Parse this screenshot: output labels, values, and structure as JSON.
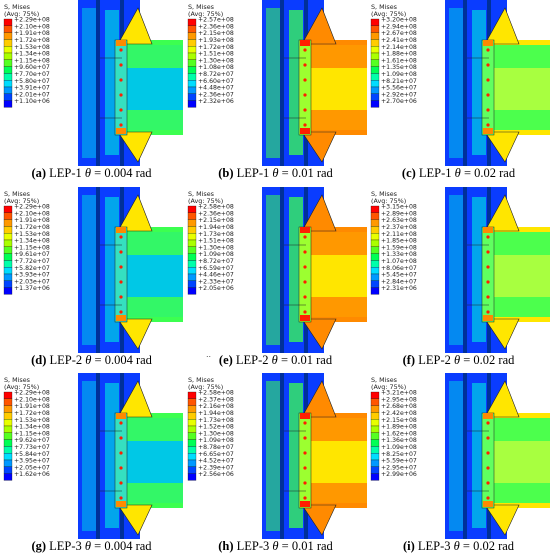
{
  "panels": [
    {
      "letter": "(a)",
      "label": "LEP-1",
      "theta": "θ",
      "angle": "= 0.004 rad",
      "title": "S, Mises",
      "subtitle": "(Avg: 75%)",
      "scheme": "a",
      "legend": [
        "+2.29e+08",
        "+2.10e+08",
        "+1.91e+08",
        "+1.72e+08",
        "+1.53e+08",
        "+1.34e+08",
        "+1.15e+08",
        "+9.60e+07",
        "+7.70e+07",
        "+5.80e+07",
        "+3.91e+07",
        "+2.01e+07",
        "+1.10e+06"
      ]
    },
    {
      "letter": "(b)",
      "label": "LEP-1",
      "theta": "θ",
      "angle": "= 0.01 rad",
      "title": "S, Mises",
      "subtitle": "(Avg: 75%)",
      "scheme": "b",
      "legend": [
        "+2.57e+08",
        "+2.36e+08",
        "+2.15e+08",
        "+1.93e+08",
        "+1.72e+08",
        "+1.51e+08",
        "+1.30e+08",
        "+1.08e+08",
        "+8.72e+07",
        "+6.60e+07",
        "+4.48e+07",
        "+2.36e+07",
        "+2.32e+06"
      ]
    },
    {
      "letter": "(c)",
      "label": "LEP-1",
      "theta": "θ",
      "angle": "= 0.02 rad",
      "title": "S, Mises",
      "subtitle": "(Avg: 75%)",
      "scheme": "c",
      "legend": [
        "+3.20e+08",
        "+2.94e+08",
        "+2.67e+08",
        "+2.41e+08",
        "+2.14e+08",
        "+1.88e+08",
        "+1.61e+08",
        "+1.35e+08",
        "+1.09e+08",
        "+8.21e+07",
        "+5.56e+07",
        "+2.92e+07",
        "+2.70e+06"
      ]
    },
    {
      "letter": "(d)",
      "label": "LEP-2",
      "theta": "θ",
      "angle": "= 0.004 rad",
      "title": "S, Mises",
      "subtitle": "(Avg: 75%)",
      "scheme": "a",
      "legend": [
        "+2.29e+08",
        "+2.10e+08",
        "+1.91e+08",
        "+1.72e+08",
        "+1.53e+08",
        "+1.34e+08",
        "+1.15e+08",
        "+9.61e+07",
        "+7.72e+07",
        "+5.82e+07",
        "+3.93e+07",
        "+2.03e+07",
        "+1.37e+06"
      ]
    },
    {
      "letter": "(e)",
      "label": "LEP-2",
      "theta": "θ",
      "angle": "= 0.01 rad",
      "title": "S, Mises",
      "subtitle": "(Avg: 75%)",
      "scheme": "b",
      "legend": [
        "+2.58e+08",
        "+2.36e+08",
        "+2.15e+08",
        "+1.94e+08",
        "+1.73e+08",
        "+1.51e+08",
        "+1.30e+08",
        "+1.09e+08",
        "+8.72e+07",
        "+6.59e+07",
        "+4.46e+07",
        "+2.33e+07",
        "+2.05e+06"
      ]
    },
    {
      "letter": "(f)",
      "label": "LEP-2",
      "theta": "θ",
      "angle": "= 0.02 rad",
      "title": "S, Mises",
      "subtitle": "(Avg: 75%)",
      "scheme": "c",
      "legend": [
        "+3.15e+08",
        "+2.89e+08",
        "+2.63e+08",
        "+2.37e+08",
        "+2.11e+08",
        "+1.85e+08",
        "+1.59e+08",
        "+1.33e+08",
        "+1.07e+08",
        "+8.06e+07",
        "+5.45e+07",
        "+2.84e+07",
        "+2.31e+06"
      ]
    },
    {
      "letter": "(g)",
      "label": "LEP-3",
      "theta": "θ",
      "angle": "= 0.004 rad",
      "title": "S, Mises",
      "subtitle": "(Avg: 75%)",
      "scheme": "a",
      "legend": [
        "+2.29e+08",
        "+2.10e+08",
        "+1.91e+08",
        "+1.72e+08",
        "+1.53e+08",
        "+1.34e+08",
        "+1.15e+08",
        "+9.62e+07",
        "+7.73e+07",
        "+5.84e+07",
        "+3.95e+07",
        "+2.05e+07",
        "+1.62e+06"
      ]
    },
    {
      "letter": "(h)",
      "label": "LEP-3",
      "theta": "θ",
      "angle": "= 0.01 rad",
      "title": "S, Mises",
      "subtitle": "(Avg: 75%)",
      "scheme": "b",
      "legend": [
        "+2.58e+08",
        "+2.37e+08",
        "+2.16e+08",
        "+1.94e+08",
        "+1.73e+08",
        "+1.52e+08",
        "+1.30e+08",
        "+1.09e+08",
        "+8.78e+07",
        "+6.65e+07",
        "+4.52e+07",
        "+2.39e+07",
        "+2.56e+06"
      ]
    },
    {
      "letter": "(i)",
      "label": "LEP-3",
      "theta": "θ",
      "angle": "= 0.02 rad",
      "title": "S, Mises",
      "subtitle": "(Avg: 75%)",
      "scheme": "c",
      "legend": [
        "+3.21e+08",
        "+2.95e+08",
        "+2.68e+08",
        "+2.42e+08",
        "+2.15e+08",
        "+1.89e+08",
        "+1.62e+08",
        "+1.36e+08",
        "+1.09e+08",
        "+8.25e+07",
        "+5.59e+07",
        "+2.95e+07",
        "+2.99e+06"
      ]
    }
  ],
  "stray_mark": "..",
  "colors": {
    "legend_scale": [
      "#ff0000",
      "#ff5500",
      "#ff9900",
      "#ffcc00",
      "#e8ff00",
      "#aaff00",
      "#55ff22",
      "#00ff55",
      "#00ffaa",
      "#00ddff",
      "#0099ff",
      "#0044ff",
      "#0000ff"
    ],
    "background_blue": "#0a3cff",
    "mid_cyan": "#00c8e6",
    "mid_green": "#3cff50",
    "hot_yellow": "#ffe600",
    "hot_orange": "#ff8a00",
    "hot_red": "#ff1e00"
  }
}
